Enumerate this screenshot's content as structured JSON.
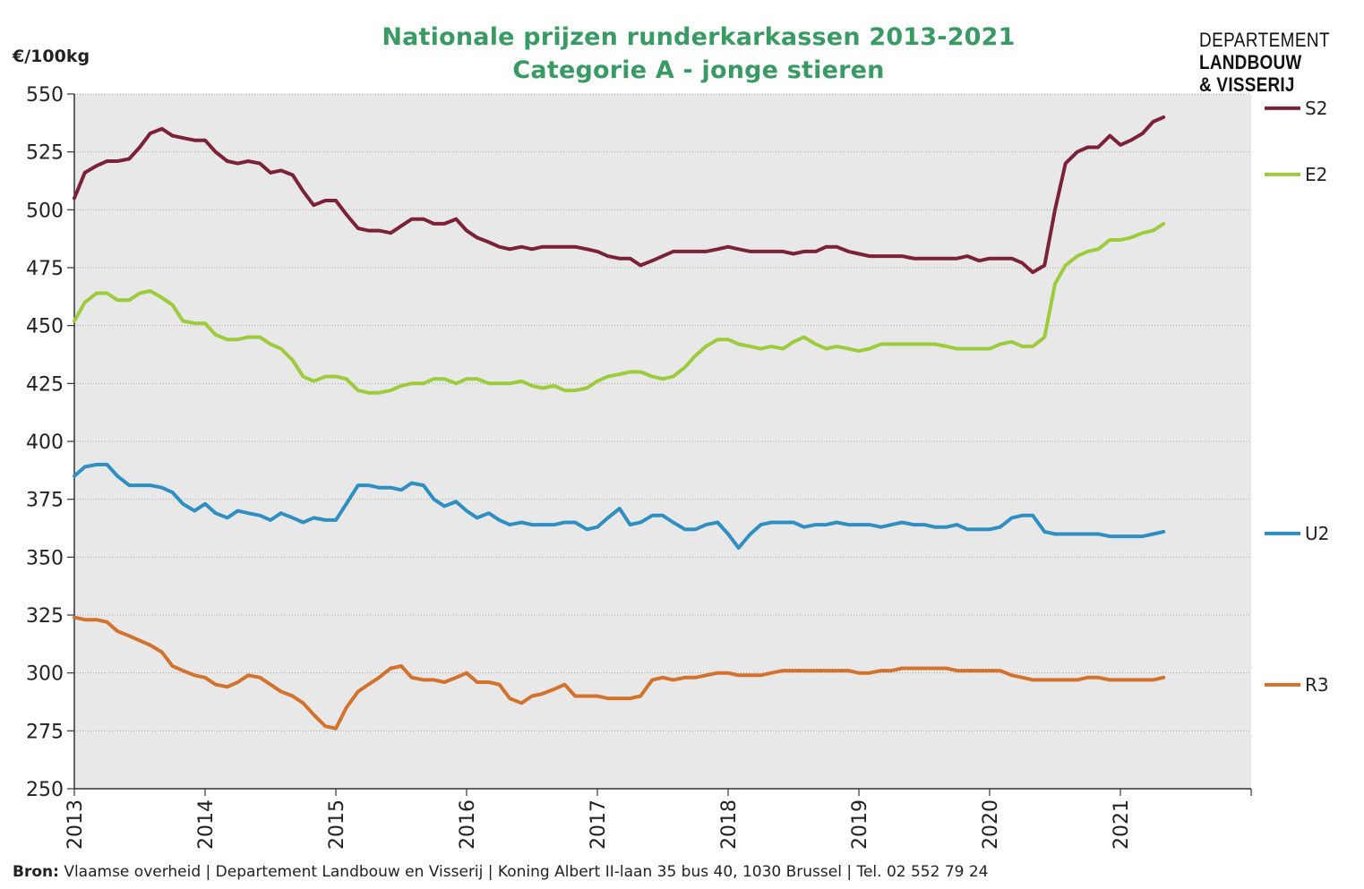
{
  "title_line1": "Nationale prijzen runderkarkassen 2013-2021",
  "title_line2": "Categorie A - jonge stieren",
  "logo": {
    "line1": "DEPARTEMENT",
    "line2": "LANDBOUW",
    "line3": "& VISSERIJ"
  },
  "source": {
    "label": "Bron:",
    "text": " Vlaamse overheid | Departement Landbouw en Visserij | Koning Albert II-laan 35 bus 40, 1030 Brussel | Tel. 02 552 79 24"
  },
  "chart_data": {
    "type": "line",
    "title": "Nationale prijzen runderkarkassen 2013-2021",
    "subtitle": "Categorie A - jonge stieren",
    "ylabel": "€/100kg",
    "ylim": [
      250,
      550
    ],
    "yticks": [
      250,
      275,
      300,
      325,
      350,
      375,
      400,
      425,
      450,
      475,
      500,
      525,
      550
    ],
    "xlim": [
      2013,
      2022
    ],
    "xticks": [
      "2013",
      "2014",
      "2015",
      "2016",
      "2017",
      "2018",
      "2019",
      "2020",
      "2021"
    ],
    "grid": "horizontal dotted",
    "legend_position": "right",
    "colors": {
      "S2": "#7b2138",
      "E2": "#9ccb3b",
      "U2": "#2f8fc2",
      "R3": "#d3722c",
      "plot_bg": "#e8e8e8"
    },
    "series": [
      {
        "name": "S2",
        "color": "#7b2138",
        "x": [
          2013.0,
          2013.08,
          2013.17,
          2013.25,
          2013.33,
          2013.42,
          2013.5,
          2013.58,
          2013.67,
          2013.75,
          2013.83,
          2013.92,
          2014.0,
          2014.08,
          2014.17,
          2014.25,
          2014.33,
          2014.42,
          2014.5,
          2014.58,
          2014.67,
          2014.75,
          2014.83,
          2014.92,
          2015.0,
          2015.08,
          2015.17,
          2015.25,
          2015.33,
          2015.42,
          2015.5,
          2015.58,
          2015.67,
          2015.75,
          2015.83,
          2015.92,
          2016.0,
          2016.08,
          2016.17,
          2016.25,
          2016.33,
          2016.42,
          2016.5,
          2016.58,
          2016.67,
          2016.75,
          2016.83,
          2016.92,
          2017.0,
          2017.08,
          2017.17,
          2017.25,
          2017.33,
          2017.42,
          2017.5,
          2017.58,
          2017.67,
          2017.75,
          2017.83,
          2017.92,
          2018.0,
          2018.08,
          2018.17,
          2018.25,
          2018.33,
          2018.42,
          2018.5,
          2018.58,
          2018.67,
          2018.75,
          2018.83,
          2018.92,
          2019.0,
          2019.08,
          2019.17,
          2019.25,
          2019.33,
          2019.42,
          2019.5,
          2019.58,
          2019.67,
          2019.75,
          2019.83,
          2019.92,
          2020.0,
          2020.08,
          2020.17,
          2020.25,
          2020.33,
          2020.42,
          2020.5,
          2020.58,
          2020.67,
          2020.75,
          2020.83,
          2020.92,
          2021.0,
          2021.08,
          2021.17,
          2021.25,
          2021.33
        ],
        "values": [
          505,
          516,
          519,
          521,
          521,
          522,
          527,
          533,
          535,
          532,
          531,
          530,
          530,
          525,
          521,
          520,
          521,
          520,
          516,
          517,
          515,
          508,
          502,
          504,
          504,
          498,
          492,
          491,
          491,
          490,
          493,
          496,
          496,
          494,
          494,
          496,
          491,
          488,
          486,
          484,
          483,
          484,
          483,
          484,
          484,
          484,
          484,
          483,
          482,
          480,
          479,
          479,
          476,
          478,
          480,
          482,
          482,
          482,
          482,
          483,
          484,
          483,
          482,
          482,
          482,
          482,
          481,
          482,
          482,
          484,
          484,
          482,
          481,
          480,
          480,
          480,
          480,
          479,
          479,
          479,
          479,
          479,
          480,
          478,
          479,
          479,
          479,
          477,
          473,
          476,
          500,
          520,
          525,
          527,
          527,
          532,
          528,
          530,
          533,
          538,
          540
        ]
      },
      {
        "name": "E2",
        "color": "#9ccb3b",
        "x": [
          2013.0,
          2013.08,
          2013.17,
          2013.25,
          2013.33,
          2013.42,
          2013.5,
          2013.58,
          2013.67,
          2013.75,
          2013.83,
          2013.92,
          2014.0,
          2014.08,
          2014.17,
          2014.25,
          2014.33,
          2014.42,
          2014.5,
          2014.58,
          2014.67,
          2014.75,
          2014.83,
          2014.92,
          2015.0,
          2015.08,
          2015.17,
          2015.25,
          2015.33,
          2015.42,
          2015.5,
          2015.58,
          2015.67,
          2015.75,
          2015.83,
          2015.92,
          2016.0,
          2016.08,
          2016.17,
          2016.25,
          2016.33,
          2016.42,
          2016.5,
          2016.58,
          2016.67,
          2016.75,
          2016.83,
          2016.92,
          2017.0,
          2017.08,
          2017.17,
          2017.25,
          2017.33,
          2017.42,
          2017.5,
          2017.58,
          2017.67,
          2017.75,
          2017.83,
          2017.92,
          2018.0,
          2018.08,
          2018.17,
          2018.25,
          2018.33,
          2018.42,
          2018.5,
          2018.58,
          2018.67,
          2018.75,
          2018.83,
          2018.92,
          2019.0,
          2019.08,
          2019.17,
          2019.25,
          2019.33,
          2019.42,
          2019.5,
          2019.58,
          2019.67,
          2019.75,
          2019.83,
          2019.92,
          2020.0,
          2020.08,
          2020.17,
          2020.25,
          2020.33,
          2020.42,
          2020.5,
          2020.58,
          2020.67,
          2020.75,
          2020.83,
          2020.92,
          2021.0,
          2021.08,
          2021.17,
          2021.25,
          2021.33
        ],
        "values": [
          452,
          460,
          464,
          464,
          461,
          461,
          464,
          465,
          462,
          459,
          452,
          451,
          451,
          446,
          444,
          444,
          445,
          445,
          442,
          440,
          435,
          428,
          426,
          428,
          428,
          427,
          422,
          421,
          421,
          422,
          424,
          425,
          425,
          427,
          427,
          425,
          427,
          427,
          425,
          425,
          425,
          426,
          424,
          423,
          424,
          422,
          422,
          423,
          426,
          428,
          429,
          430,
          430,
          428,
          427,
          428,
          432,
          437,
          441,
          444,
          444,
          442,
          441,
          440,
          441,
          440,
          443,
          445,
          442,
          440,
          441,
          440,
          439,
          440,
          442,
          442,
          442,
          442,
          442,
          442,
          441,
          440,
          440,
          440,
          440,
          442,
          443,
          441,
          441,
          445,
          468,
          476,
          480,
          482,
          483,
          487,
          487,
          488,
          490,
          491,
          494
        ]
      },
      {
        "name": "U2",
        "color": "#2f8fc2",
        "x": [
          2013.0,
          2013.08,
          2013.17,
          2013.25,
          2013.33,
          2013.42,
          2013.5,
          2013.58,
          2013.67,
          2013.75,
          2013.83,
          2013.92,
          2014.0,
          2014.08,
          2014.17,
          2014.25,
          2014.33,
          2014.42,
          2014.5,
          2014.58,
          2014.67,
          2014.75,
          2014.83,
          2014.92,
          2015.0,
          2015.08,
          2015.17,
          2015.25,
          2015.33,
          2015.42,
          2015.5,
          2015.58,
          2015.67,
          2015.75,
          2015.83,
          2015.92,
          2016.0,
          2016.08,
          2016.17,
          2016.25,
          2016.33,
          2016.42,
          2016.5,
          2016.58,
          2016.67,
          2016.75,
          2016.83,
          2016.92,
          2017.0,
          2017.08,
          2017.17,
          2017.25,
          2017.33,
          2017.42,
          2017.5,
          2017.58,
          2017.67,
          2017.75,
          2017.83,
          2017.92,
          2018.0,
          2018.08,
          2018.17,
          2018.25,
          2018.33,
          2018.42,
          2018.5,
          2018.58,
          2018.67,
          2018.75,
          2018.83,
          2018.92,
          2019.0,
          2019.08,
          2019.17,
          2019.25,
          2019.33,
          2019.42,
          2019.5,
          2019.58,
          2019.67,
          2019.75,
          2019.83,
          2019.92,
          2020.0,
          2020.08,
          2020.17,
          2020.25,
          2020.33,
          2020.42,
          2020.5,
          2020.58,
          2020.67,
          2020.75,
          2020.83,
          2020.92,
          2021.0,
          2021.08,
          2021.17,
          2021.25,
          2021.33
        ],
        "values": [
          385,
          389,
          390,
          390,
          385,
          381,
          381,
          381,
          380,
          378,
          373,
          370,
          373,
          369,
          367,
          370,
          369,
          368,
          366,
          369,
          367,
          365,
          367,
          366,
          366,
          373,
          381,
          381,
          380,
          380,
          379,
          382,
          381,
          375,
          372,
          374,
          370,
          367,
          369,
          366,
          364,
          365,
          364,
          364,
          364,
          365,
          365,
          362,
          363,
          367,
          371,
          364,
          365,
          368,
          368,
          365,
          362,
          362,
          364,
          365,
          360,
          354,
          360,
          364,
          365,
          365,
          365,
          363,
          364,
          364,
          365,
          364,
          364,
          364,
          363,
          364,
          365,
          364,
          364,
          363,
          363,
          364,
          362,
          362,
          362,
          363,
          367,
          368,
          368,
          361,
          360,
          360,
          360,
          360,
          360,
          359,
          359,
          359,
          359,
          360,
          361
        ]
      },
      {
        "name": "R3",
        "color": "#d3722c",
        "x": [
          2013.0,
          2013.08,
          2013.17,
          2013.25,
          2013.33,
          2013.42,
          2013.5,
          2013.58,
          2013.67,
          2013.75,
          2013.83,
          2013.92,
          2014.0,
          2014.08,
          2014.17,
          2014.25,
          2014.33,
          2014.42,
          2014.5,
          2014.58,
          2014.67,
          2014.75,
          2014.83,
          2014.92,
          2015.0,
          2015.08,
          2015.17,
          2015.25,
          2015.33,
          2015.42,
          2015.5,
          2015.58,
          2015.67,
          2015.75,
          2015.83,
          2015.92,
          2016.0,
          2016.08,
          2016.17,
          2016.25,
          2016.33,
          2016.42,
          2016.5,
          2016.58,
          2016.67,
          2016.75,
          2016.83,
          2016.92,
          2017.0,
          2017.08,
          2017.17,
          2017.25,
          2017.33,
          2017.42,
          2017.5,
          2017.58,
          2017.67,
          2017.75,
          2017.83,
          2017.92,
          2018.0,
          2018.08,
          2018.17,
          2018.25,
          2018.33,
          2018.42,
          2018.5,
          2018.58,
          2018.67,
          2018.75,
          2018.83,
          2018.92,
          2019.0,
          2019.08,
          2019.17,
          2019.25,
          2019.33,
          2019.42,
          2019.5,
          2019.58,
          2019.67,
          2019.75,
          2019.83,
          2019.92,
          2020.0,
          2020.08,
          2020.17,
          2020.25,
          2020.33,
          2020.42,
          2020.5,
          2020.58,
          2020.67,
          2020.75,
          2020.83,
          2020.92,
          2021.0,
          2021.08,
          2021.17,
          2021.25,
          2021.33
        ],
        "values": [
          324,
          323,
          323,
          322,
          318,
          316,
          314,
          312,
          309,
          303,
          301,
          299,
          298,
          295,
          294,
          296,
          299,
          298,
          295,
          292,
          290,
          287,
          282,
          277,
          276,
          285,
          292,
          295,
          298,
          302,
          303,
          298,
          297,
          297,
          296,
          298,
          300,
          296,
          296,
          295,
          289,
          287,
          290,
          291,
          293,
          295,
          290,
          290,
          290,
          289,
          289,
          289,
          290,
          297,
          298,
          297,
          298,
          298,
          299,
          300,
          300,
          299,
          299,
          299,
          300,
          301,
          301,
          301,
          301,
          301,
          301,
          301,
          300,
          300,
          301,
          301,
          302,
          302,
          302,
          302,
          302,
          301,
          301,
          301,
          301,
          301,
          299,
          298,
          297,
          297,
          297,
          297,
          297,
          298,
          298,
          297,
          297,
          297,
          297,
          297,
          298
        ]
      }
    ]
  }
}
